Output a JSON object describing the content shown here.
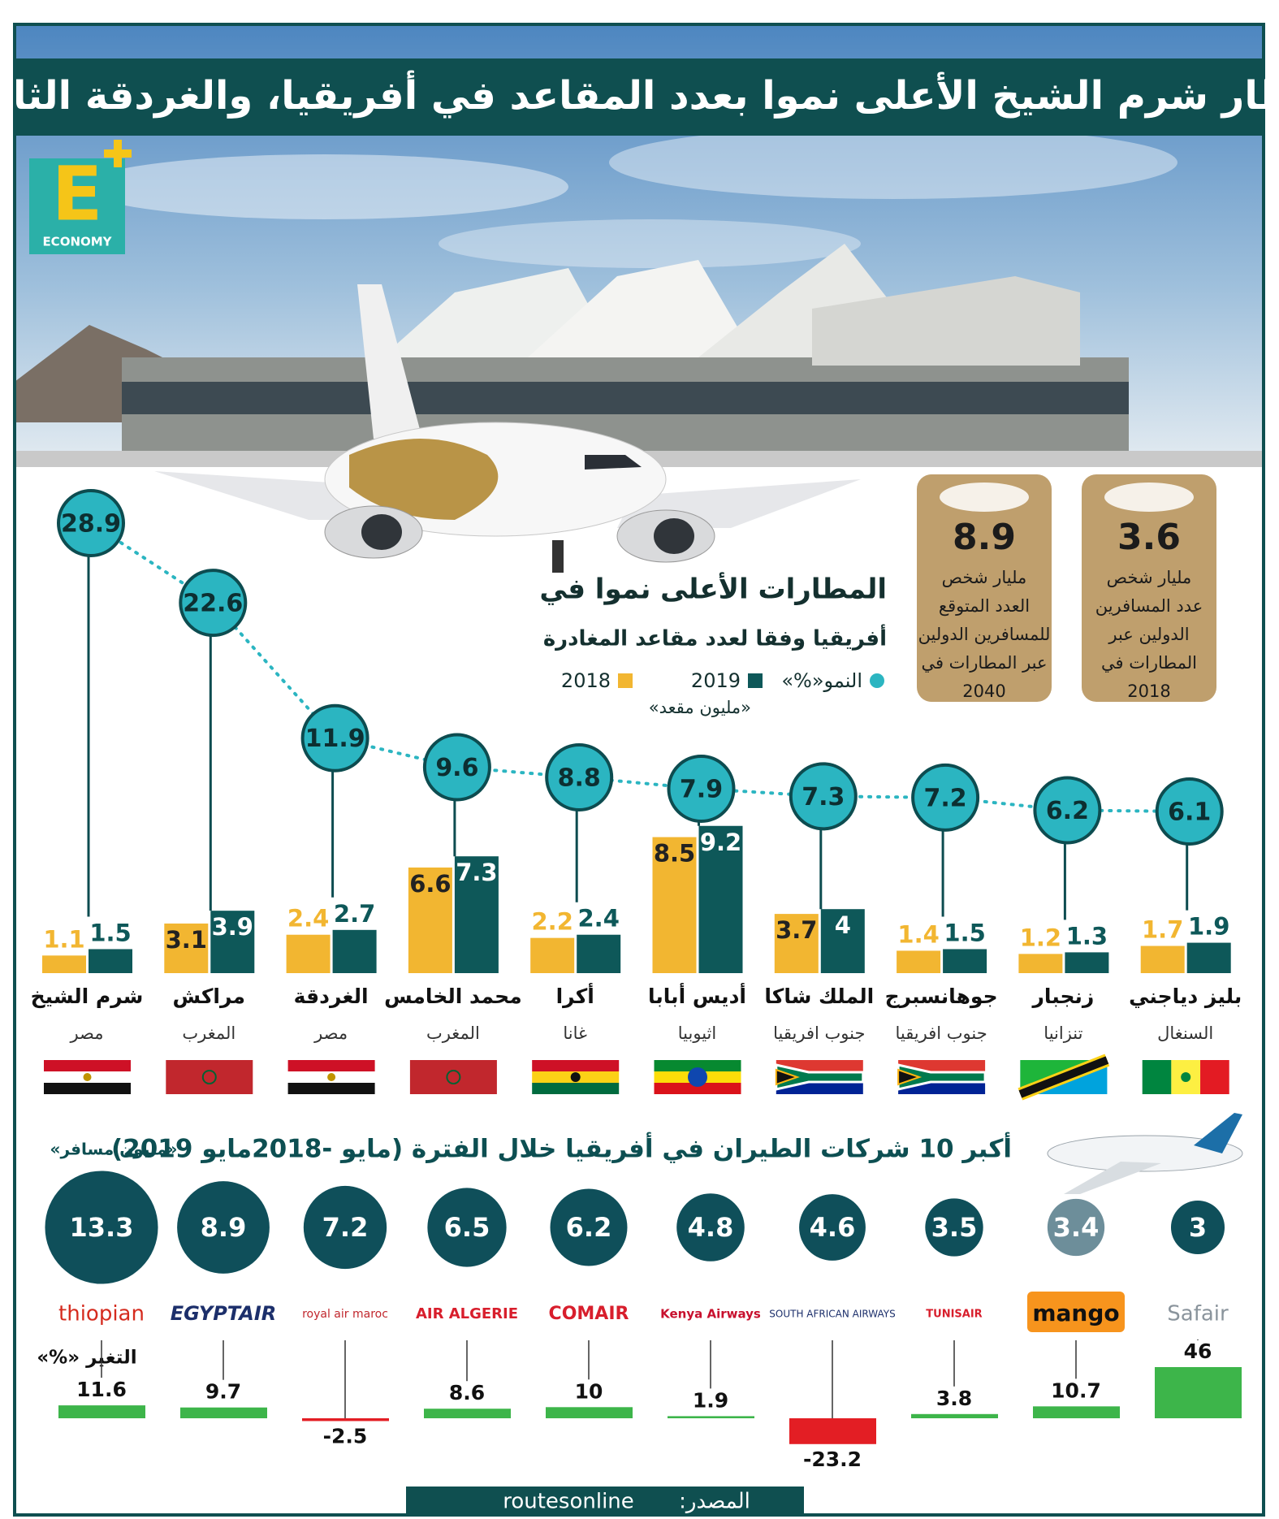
{
  "header": {
    "title": "مطار شرم الشيخ الأعلى نموا بعدد المقاعد في أفريقيا، والغردقة الثالث",
    "logo": "E",
    "logo_sub": "ECONOMY"
  },
  "stats": [
    {
      "value": 3.6,
      "lines": [
        "مليار شخص",
        "عدد المسافرين",
        "الدولين عبر",
        "المطارات في",
        "2018"
      ]
    },
    {
      "value": 8.9,
      "lines": [
        "مليار شخص",
        "العدد المتوقع",
        "للمسافرين الدولين",
        "عبر المطارات في",
        "2040"
      ]
    }
  ],
  "chart_data": [
    {
      "type": "bar",
      "title": "المطارات الأعلى نموا في",
      "subtitle": "أفريقيا وفقا لعدد مقاعد المغادرة",
      "unit": "«مليون مقعد»",
      "categories": [
        "شرم الشيخ",
        "مراكش",
        "الغردقة",
        "محمد الخامس",
        "أكرا",
        "أديس أبابا",
        "الملك شاكا",
        "جوهانسبرج",
        "زنجبار",
        "بليز دياجني"
      ],
      "countries": [
        "مصر",
        "المغرب",
        "مصر",
        "المغرب",
        "غانا",
        "اثيوبيا",
        "جنوب افريقيا",
        "جنوب افريقيا",
        "تنزانيا",
        "السنغال"
      ],
      "series": [
        {
          "name": "النمو«%»",
          "type": "line",
          "color": "#2bb5c1",
          "values": [
            28.9,
            22.6,
            11.9,
            9.6,
            8.8,
            7.9,
            7.3,
            7.2,
            6.2,
            6.1
          ]
        },
        {
          "name": "2019",
          "color": "#0e5859",
          "values": [
            1.5,
            3.9,
            2.7,
            7.3,
            2.4,
            9.2,
            4,
            1.5,
            1.3,
            1.9
          ]
        },
        {
          "name": "2018",
          "color": "#f2b631",
          "values": [
            1.1,
            3.1,
            2.4,
            6.6,
            2.2,
            8.5,
            3.7,
            1.4,
            1.2,
            1.7
          ]
        }
      ]
    },
    {
      "type": "bubble",
      "title": "أكبر 10 شركات الطيران في أفريقيا خلال الفترة (مايو -2018مايو 2019)",
      "unit": "«مليون مسافر»",
      "categories": [
        "thiopian",
        "EGYPTAIR",
        "royal air maroc",
        "AIR ALGERIE",
        "COMAIR",
        "Kenya Airways",
        "SOUTH AFRICAN AIRWAYS",
        "TUNISAIR",
        "mango",
        "Safair"
      ],
      "values": [
        13.3,
        8.9,
        7.2,
        6.5,
        6.2,
        4.8,
        4.6,
        3.5,
        3.4,
        3
      ],
      "colors": [
        "#0f4f5a",
        "#0f4f5a",
        "#0f4f5a",
        "#0f4f5a",
        "#0f4f5a",
        "#0f4f5a",
        "#0f4f5a",
        "#0f4f5a",
        "#6d8e9a",
        "#0f4f5a"
      ],
      "change": {
        "name": "التغير «%»",
        "values": [
          11.6,
          9.7,
          -2.5,
          8.6,
          10,
          1.9,
          -23.2,
          3.8,
          10.7,
          46
        ],
        "positive_color": "#3db54a",
        "negative_color": "#e31e24"
      }
    }
  ],
  "source": {
    "label": "المصدر:",
    "text": "routesonline"
  }
}
